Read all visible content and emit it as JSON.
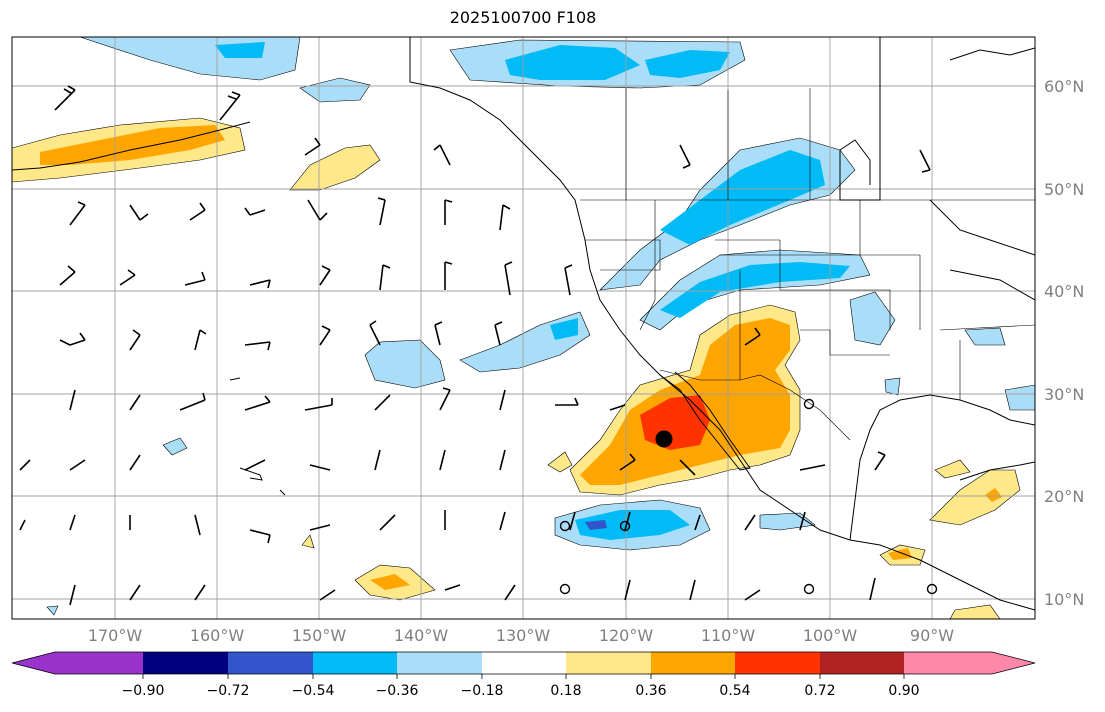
{
  "title": "2025100700 F108",
  "map": {
    "lat_labels": [
      "60°N",
      "50°N",
      "40°N",
      "30°N",
      "20°N",
      "10°N"
    ],
    "lon_labels": [
      "170°W",
      "160°W",
      "150°W",
      "140°W",
      "130°W",
      "120°W",
      "110°W",
      "100°W",
      "90°W"
    ],
    "gridlines": true
  },
  "colorbar": {
    "ticks": [
      "−0.90",
      "−0.72",
      "−0.54",
      "−0.36",
      "−0.18",
      "0.18",
      "0.36",
      "0.54",
      "0.72",
      "0.90"
    ],
    "colors": [
      "#9933cc",
      "#000080",
      "#3355cc",
      "#00bbf5",
      "#aadef8",
      "#ffffff",
      "#ffe88a",
      "#ffa500",
      "#ff3300",
      "#b22222",
      "#ff88aa"
    ],
    "extend": "both"
  },
  "colors": {
    "neg_weak": "#aadef8",
    "neg_mod": "#00bbf5",
    "neg_strong": "#3355cc",
    "pos_weak": "#ffe88a",
    "pos_mod": "#ffa500",
    "pos_strong": "#ff3300"
  },
  "marker": {
    "name": "storm-center-dot",
    "color": "#000000"
  }
}
